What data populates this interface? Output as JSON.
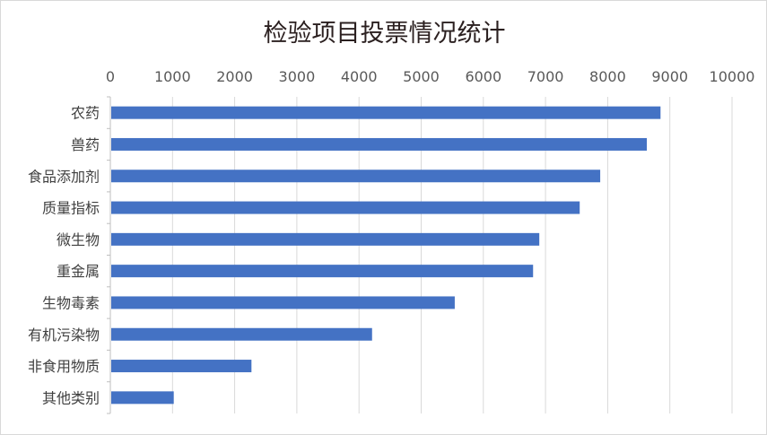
{
  "chart_data": {
    "type": "bar",
    "orientation": "horizontal",
    "title": "检验项目投票情况统计",
    "categories": [
      "农药",
      "兽药",
      "食品添加剂",
      "质量指标",
      "微生物",
      "重金属",
      "生物毒素",
      "有机污染物",
      "非食用物质",
      "其他类别"
    ],
    "values": [
      8850,
      8630,
      7880,
      7550,
      6900,
      6800,
      5540,
      4210,
      2270,
      1020
    ],
    "xlim": [
      0,
      10000
    ],
    "xticks": [
      0,
      1000,
      2000,
      3000,
      4000,
      5000,
      6000,
      7000,
      8000,
      9000,
      10000
    ],
    "x_axis_position": "top",
    "grid": true,
    "legend": "none",
    "bar_color": "#4472C4",
    "grid_color": "#d9d9d9"
  }
}
